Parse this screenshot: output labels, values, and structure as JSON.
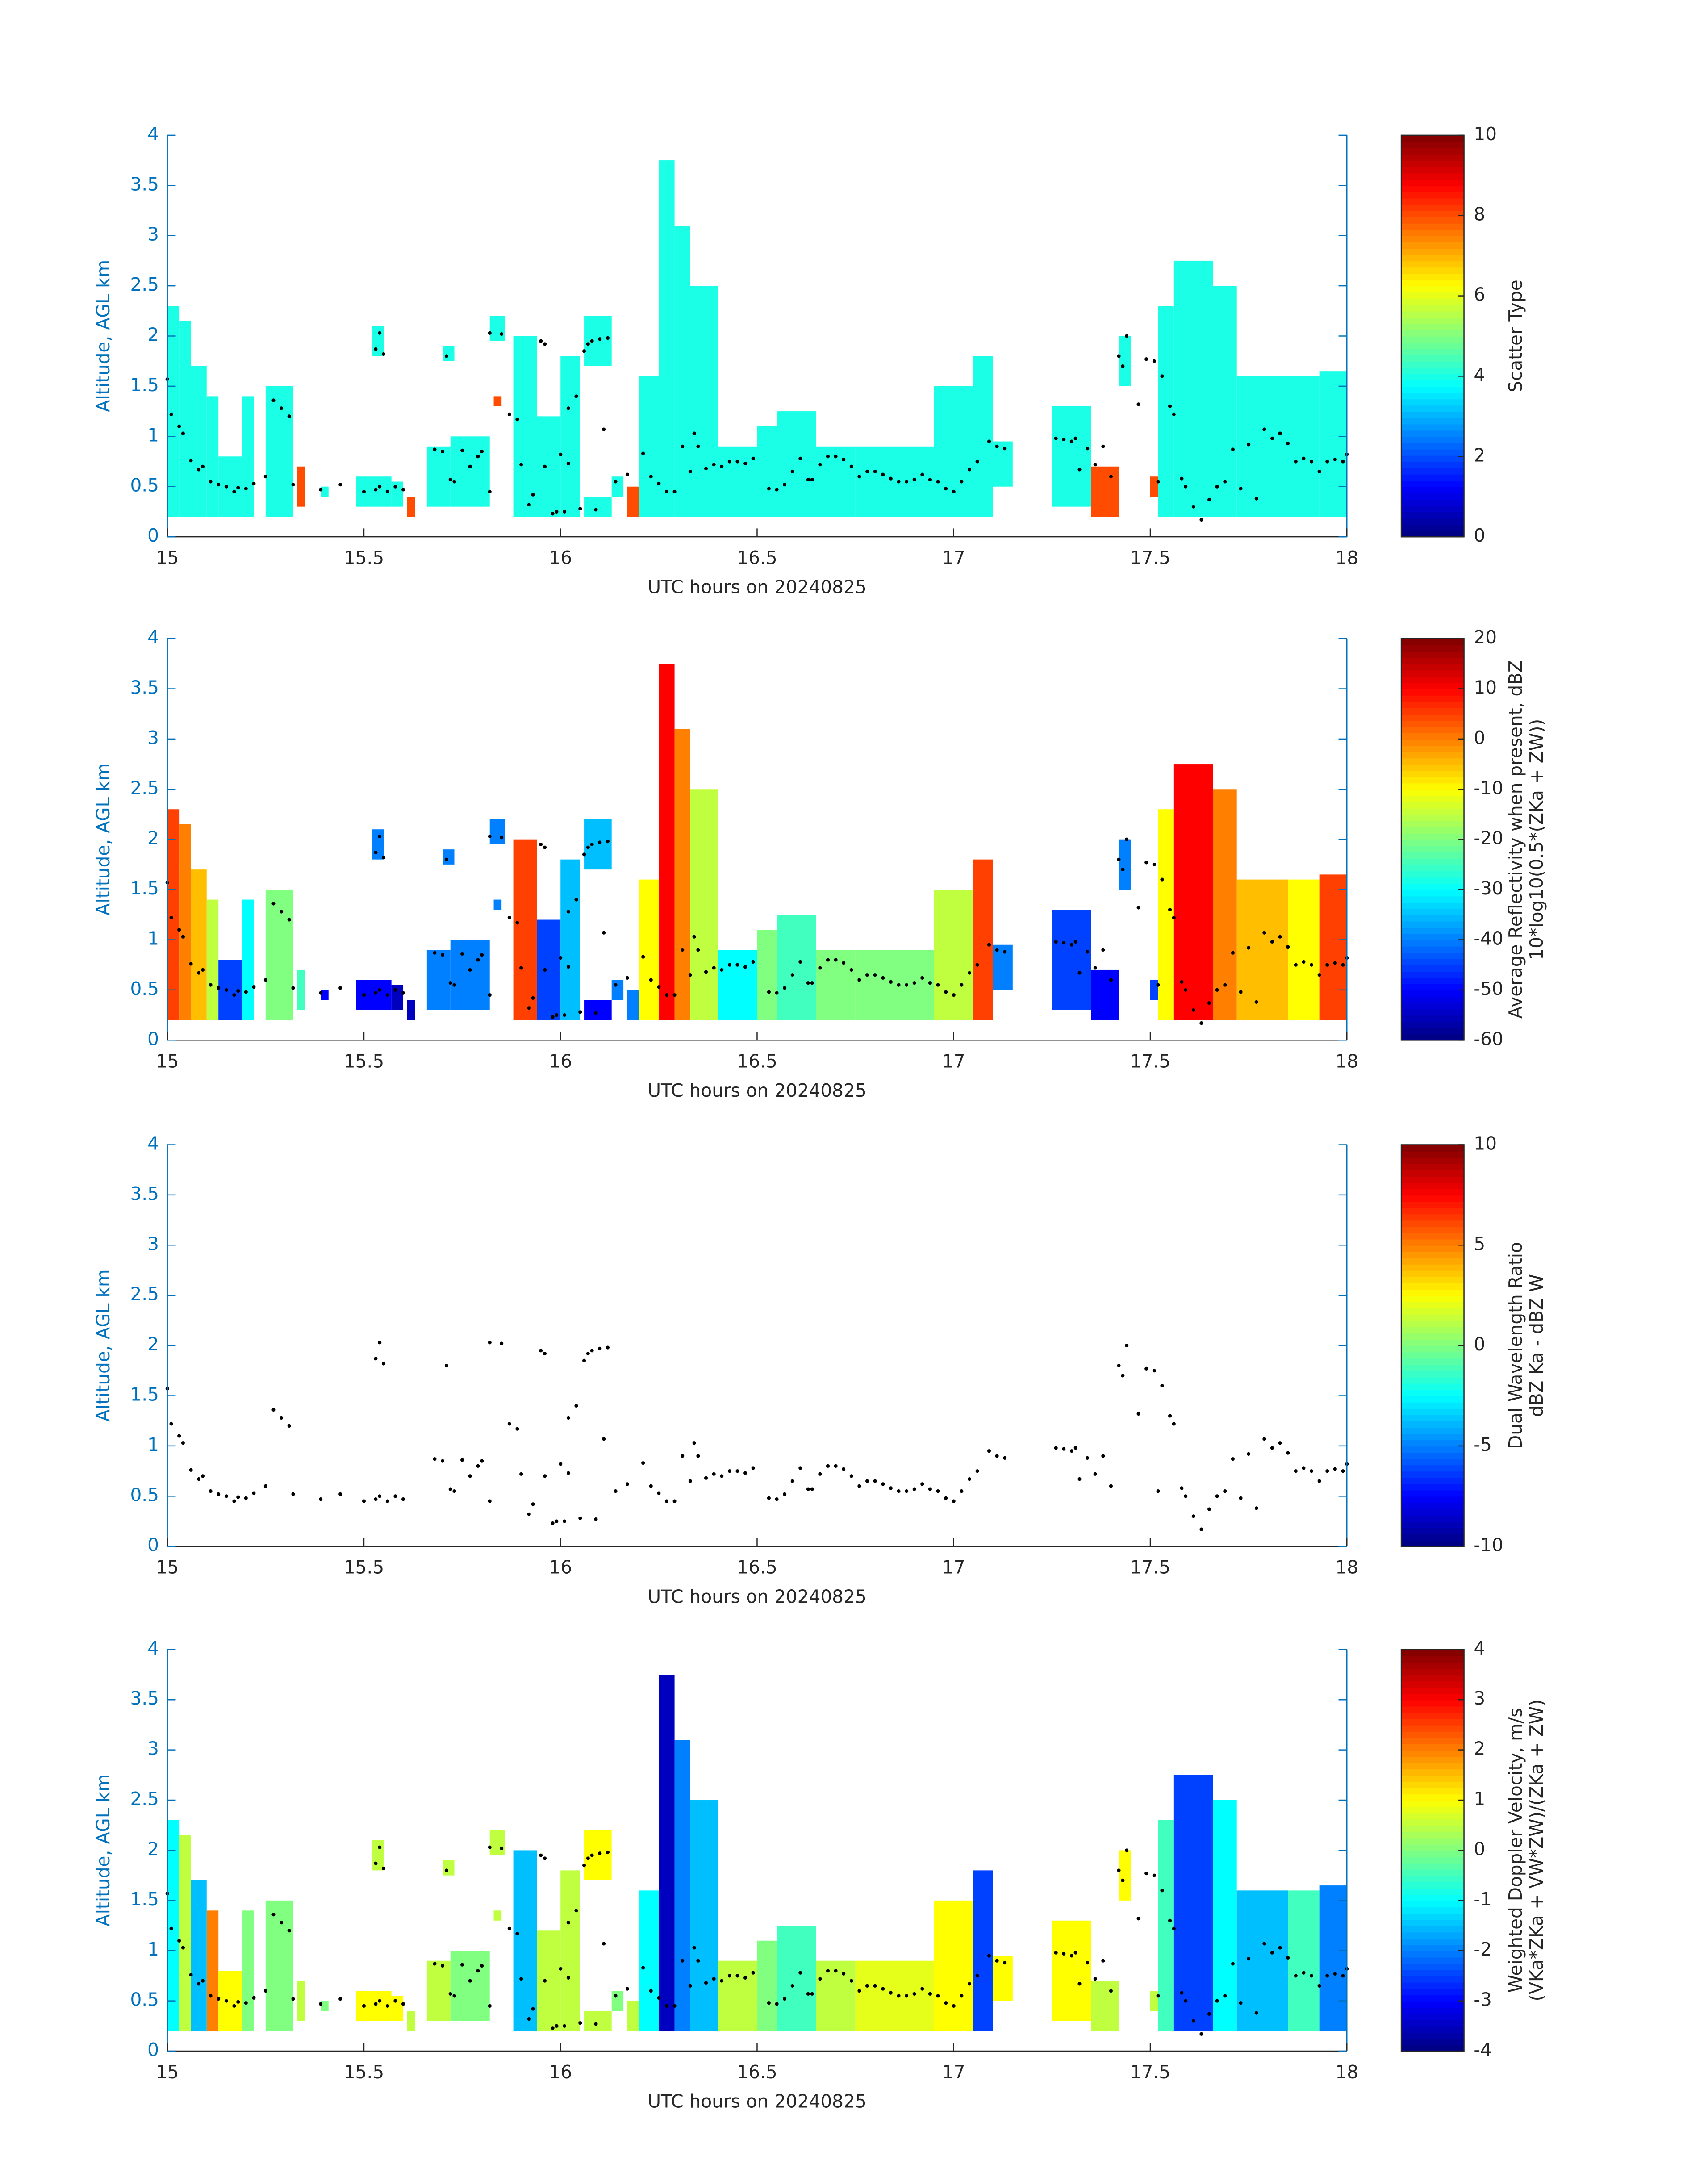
{
  "chart_data": [
    {
      "type": "heatmap",
      "xlabel": "UTC hours on 20240825",
      "ylabel": "Altitude, AGL km",
      "xlim": [
        15,
        18
      ],
      "xticks": [
        15,
        15.5,
        16,
        16.5,
        17,
        17.5,
        18
      ],
      "ylim": [
        0,
        4
      ],
      "yticks": [
        0,
        0.5,
        1,
        1.5,
        2,
        2.5,
        3,
        3.5,
        4
      ],
      "clim": [
        0,
        10
      ],
      "cticks": [
        0,
        2,
        4,
        6,
        8,
        10
      ],
      "colorbar_label": [
        "Scatter Type"
      ],
      "cells": {
        "x0": [
          15.0,
          15.03,
          15.06,
          15.1,
          15.13,
          15.19,
          15.25,
          15.33,
          15.39,
          15.48,
          15.52,
          15.57,
          15.61,
          15.66,
          15.7,
          15.72,
          15.82,
          15.83,
          15.88,
          15.94,
          16.0,
          16.06,
          16.06,
          16.13,
          16.17,
          16.2,
          16.25,
          16.29,
          16.33,
          16.4,
          16.5,
          16.55,
          16.65,
          16.75,
          16.95,
          17.05,
          17.1,
          17.25,
          17.35,
          17.42,
          17.5,
          17.52,
          17.56,
          17.66,
          17.72,
          17.85,
          17.93
        ],
        "x1": [
          15.03,
          15.06,
          15.1,
          15.13,
          15.19,
          15.22,
          15.32,
          15.35,
          15.41,
          15.57,
          15.55,
          15.6,
          15.63,
          15.72,
          15.73,
          15.82,
          15.86,
          15.85,
          15.94,
          16.0,
          16.05,
          16.13,
          16.13,
          16.16,
          16.21,
          16.25,
          16.29,
          16.33,
          16.4,
          16.5,
          16.55,
          16.65,
          16.75,
          16.95,
          17.05,
          17.1,
          17.15,
          17.35,
          17.42,
          17.45,
          17.52,
          17.56,
          17.66,
          17.72,
          17.85,
          17.93,
          18.0
        ],
        "y0": [
          0.2,
          0.2,
          0.2,
          0.2,
          0.2,
          0.2,
          0.2,
          0.3,
          0.4,
          0.3,
          1.8,
          0.3,
          0.2,
          0.3,
          1.75,
          0.3,
          1.95,
          1.3,
          0.2,
          0.2,
          0.2,
          1.7,
          0.2,
          0.4,
          0.2,
          0.2,
          0.2,
          0.2,
          0.2,
          0.2,
          0.2,
          0.2,
          0.2,
          0.2,
          0.2,
          0.2,
          0.5,
          0.3,
          0.2,
          1.5,
          0.4,
          0.2,
          0.2,
          0.2,
          0.2,
          0.2,
          0.2
        ],
        "y1": [
          2.3,
          2.15,
          1.7,
          1.4,
          0.8,
          1.4,
          1.5,
          0.7,
          0.5,
          0.6,
          2.1,
          0.55,
          0.4,
          0.9,
          1.9,
          1.0,
          2.2,
          1.4,
          2.0,
          1.2,
          1.8,
          2.2,
          0.4,
          0.6,
          0.5,
          1.6,
          3.75,
          3.1,
          2.5,
          0.9,
          1.1,
          1.25,
          0.9,
          0.9,
          1.5,
          1.8,
          0.95,
          1.3,
          0.7,
          2.0,
          0.6,
          2.3,
          2.75,
          2.5,
          1.6,
          1.6,
          1.65
        ]
      },
      "values": [
        4,
        4,
        4,
        4,
        4,
        4,
        4,
        8,
        4,
        4,
        4,
        4,
        8,
        4,
        4,
        4,
        4,
        8,
        4,
        4,
        4,
        4,
        4,
        4,
        8,
        4,
        4,
        4,
        4,
        4,
        4,
        4,
        4,
        4,
        4,
        4,
        4,
        4,
        8,
        4,
        8,
        4,
        4,
        4,
        4,
        4,
        4
      ]
    },
    {
      "type": "heatmap",
      "xlabel": "UTC hours on 20240825",
      "ylabel": "Altitude, AGL km",
      "xlim": [
        15,
        18
      ],
      "xticks": [
        15,
        15.5,
        16,
        16.5,
        17,
        17.5,
        18
      ],
      "ylim": [
        0,
        4
      ],
      "yticks": [
        0,
        0.5,
        1,
        1.5,
        2,
        2.5,
        3,
        3.5,
        4
      ],
      "clim": [
        -60,
        20
      ],
      "cticks": [
        -60,
        -50,
        -40,
        -30,
        -20,
        -10,
        0,
        10,
        20
      ],
      "colorbar_label": [
        "Average Reflectivity when present, dBZ",
        "10*log10(0.5*(ZKa + ZW))"
      ],
      "values": [
        5,
        0,
        -5,
        -15,
        -45,
        -30,
        -20,
        -25,
        -50,
        -50,
        -40,
        -55,
        -55,
        -40,
        -40,
        -40,
        -40,
        -40,
        5,
        -45,
        -35,
        -35,
        -50,
        -40,
        -40,
        -10,
        10,
        0,
        -15,
        -30,
        -20,
        -25,
        -20,
        -20,
        -15,
        5,
        -40,
        -45,
        -50,
        -40,
        -45,
        -10,
        10,
        0,
        -5,
        -10,
        5
      ]
    },
    {
      "type": "scatter",
      "xlabel": "UTC hours on 20240825",
      "ylabel": "Altitude, AGL km",
      "xlim": [
        15,
        18
      ],
      "xticks": [
        15,
        15.5,
        16,
        16.5,
        17,
        17.5,
        18
      ],
      "ylim": [
        0,
        4
      ],
      "yticks": [
        0,
        0.5,
        1,
        1.5,
        2,
        2.5,
        3,
        3.5,
        4
      ],
      "clim": [
        -10,
        10
      ],
      "cticks": [
        -10,
        -5,
        0,
        5,
        10
      ],
      "colorbar_label": [
        "Dual Wavelength Ratio",
        "dBZ Ka - dBZ W"
      ],
      "x": [
        15.0,
        15.01,
        15.03,
        15.04,
        15.06,
        15.08,
        15.09,
        15.11,
        15.13,
        15.15,
        15.17,
        15.18,
        15.2,
        15.22,
        15.25,
        15.27,
        15.29,
        15.31,
        15.32,
        15.39,
        15.44,
        15.5,
        15.53,
        15.54,
        15.53,
        15.54,
        15.55,
        15.56,
        15.58,
        15.6,
        15.68,
        15.7,
        15.71,
        15.72,
        15.73,
        15.75,
        15.77,
        15.79,
        15.8,
        15.82,
        15.82,
        15.85,
        15.87,
        15.89,
        15.9,
        15.92,
        15.93,
        15.95,
        15.96,
        15.96,
        15.98,
        15.99,
        16.0,
        16.01,
        16.02,
        16.02,
        16.04,
        16.05,
        16.06,
        16.07,
        16.08,
        16.09,
        16.1,
        16.11,
        16.12,
        16.14,
        16.17,
        16.21,
        16.23,
        16.25,
        16.27,
        16.29,
        16.31,
        16.33,
        16.34,
        16.35,
        16.37,
        16.39,
        16.41,
        16.43,
        16.45,
        16.47,
        16.49,
        16.53,
        16.55,
        16.57,
        16.59,
        16.61,
        16.63,
        16.64,
        16.66,
        16.68,
        16.7,
        16.72,
        16.74,
        16.76,
        16.78,
        16.8,
        16.82,
        16.84,
        16.86,
        16.88,
        16.9,
        16.92,
        16.94,
        16.96,
        16.98,
        17.0,
        17.02,
        17.04,
        17.06,
        17.09,
        17.11,
        17.13,
        17.26,
        17.28,
        17.3,
        17.31,
        17.32,
        17.34,
        17.36,
        17.38,
        17.4,
        17.42,
        17.43,
        17.44,
        17.47,
        17.49,
        17.51,
        17.52,
        17.53,
        17.55,
        17.56,
        17.58,
        17.59,
        17.61,
        17.63,
        17.65,
        17.67,
        17.69,
        17.71,
        17.73,
        17.75,
        17.77,
        17.79,
        17.81,
        17.83,
        17.85,
        17.87,
        17.89,
        17.91,
        17.93,
        17.95,
        17.97,
        17.99,
        18.0
      ],
      "y": [
        1.57,
        1.22,
        1.1,
        1.03,
        0.76,
        0.67,
        0.7,
        0.55,
        0.52,
        0.5,
        0.45,
        0.49,
        0.48,
        0.53,
        0.6,
        1.36,
        1.28,
        1.2,
        0.52,
        0.47,
        0.52,
        0.45,
        0.47,
        0.5,
        1.87,
        2.03,
        1.82,
        0.45,
        0.5,
        0.47,
        0.87,
        0.85,
        1.8,
        0.57,
        0.55,
        0.86,
        0.7,
        0.8,
        0.85,
        0.45,
        2.03,
        2.02,
        1.22,
        1.17,
        0.72,
        0.32,
        0.42,
        1.95,
        1.92,
        0.7,
        0.23,
        0.25,
        0.82,
        0.25,
        0.73,
        1.28,
        1.4,
        0.28,
        1.85,
        1.92,
        1.95,
        0.27,
        1.97,
        1.07,
        1.98,
        0.55,
        0.62,
        0.83,
        0.6,
        0.53,
        0.45,
        0.45,
        0.9,
        0.65,
        1.03,
        0.9,
        0.68,
        0.72,
        0.7,
        0.75,
        0.75,
        0.73,
        0.78,
        0.48,
        0.47,
        0.52,
        0.65,
        0.78,
        0.57,
        0.57,
        0.72,
        0.8,
        0.8,
        0.77,
        0.7,
        0.6,
        0.65,
        0.65,
        0.62,
        0.58,
        0.55,
        0.55,
        0.57,
        0.62,
        0.57,
        0.55,
        0.48,
        0.45,
        0.55,
        0.67,
        0.75,
        0.95,
        0.9,
        0.88,
        0.98,
        0.97,
        0.95,
        0.98,
        0.67,
        0.88,
        0.72,
        0.9,
        0.6,
        1.8,
        1.7,
        2.0,
        1.32,
        1.77,
        1.75,
        0.55,
        1.6,
        1.3,
        1.22,
        0.58,
        0.5,
        0.3,
        0.17,
        0.37,
        0.5,
        0.55,
        0.87,
        0.48,
        0.92,
        0.38,
        1.07,
        0.98,
        1.03,
        0.93,
        0.75,
        0.78,
        0.75,
        0.65,
        0.75,
        0.77,
        0.75,
        0.82
      ]
    },
    {
      "type": "heatmap",
      "xlabel": "UTC hours on 20240825",
      "ylabel": "Altitude, AGL km",
      "xlim": [
        15,
        18
      ],
      "xticks": [
        15,
        15.5,
        16,
        16.5,
        17,
        17.5,
        18
      ],
      "ylim": [
        0,
        4
      ],
      "yticks": [
        0,
        0.5,
        1,
        1.5,
        2,
        2.5,
        3,
        3.5,
        4
      ],
      "clim": [
        -4,
        4
      ],
      "cticks": [
        -4,
        -3,
        -2,
        -1,
        0,
        1,
        2,
        3,
        4
      ],
      "colorbar_label": [
        "Weighted Doppler Velocity, m/s",
        "(VKa*ZKa + VW*ZW)/(ZKa + ZW)"
      ],
      "values": [
        -1,
        0.5,
        -1.5,
        2,
        1,
        0,
        0,
        0.5,
        0,
        1,
        0.5,
        1,
        0.5,
        0.5,
        0.5,
        0,
        0.5,
        0.5,
        -1.5,
        0.5,
        0.5,
        1,
        0.5,
        0,
        0.5,
        -1,
        -3.5,
        -2,
        -1.5,
        0.5,
        0,
        -0.5,
        0.5,
        0.8,
        1,
        -2.5,
        1,
        1,
        0.5,
        1,
        0.5,
        -0.5,
        -2.5,
        -1,
        -1.5,
        -0.5,
        -2
      ]
    }
  ]
}
